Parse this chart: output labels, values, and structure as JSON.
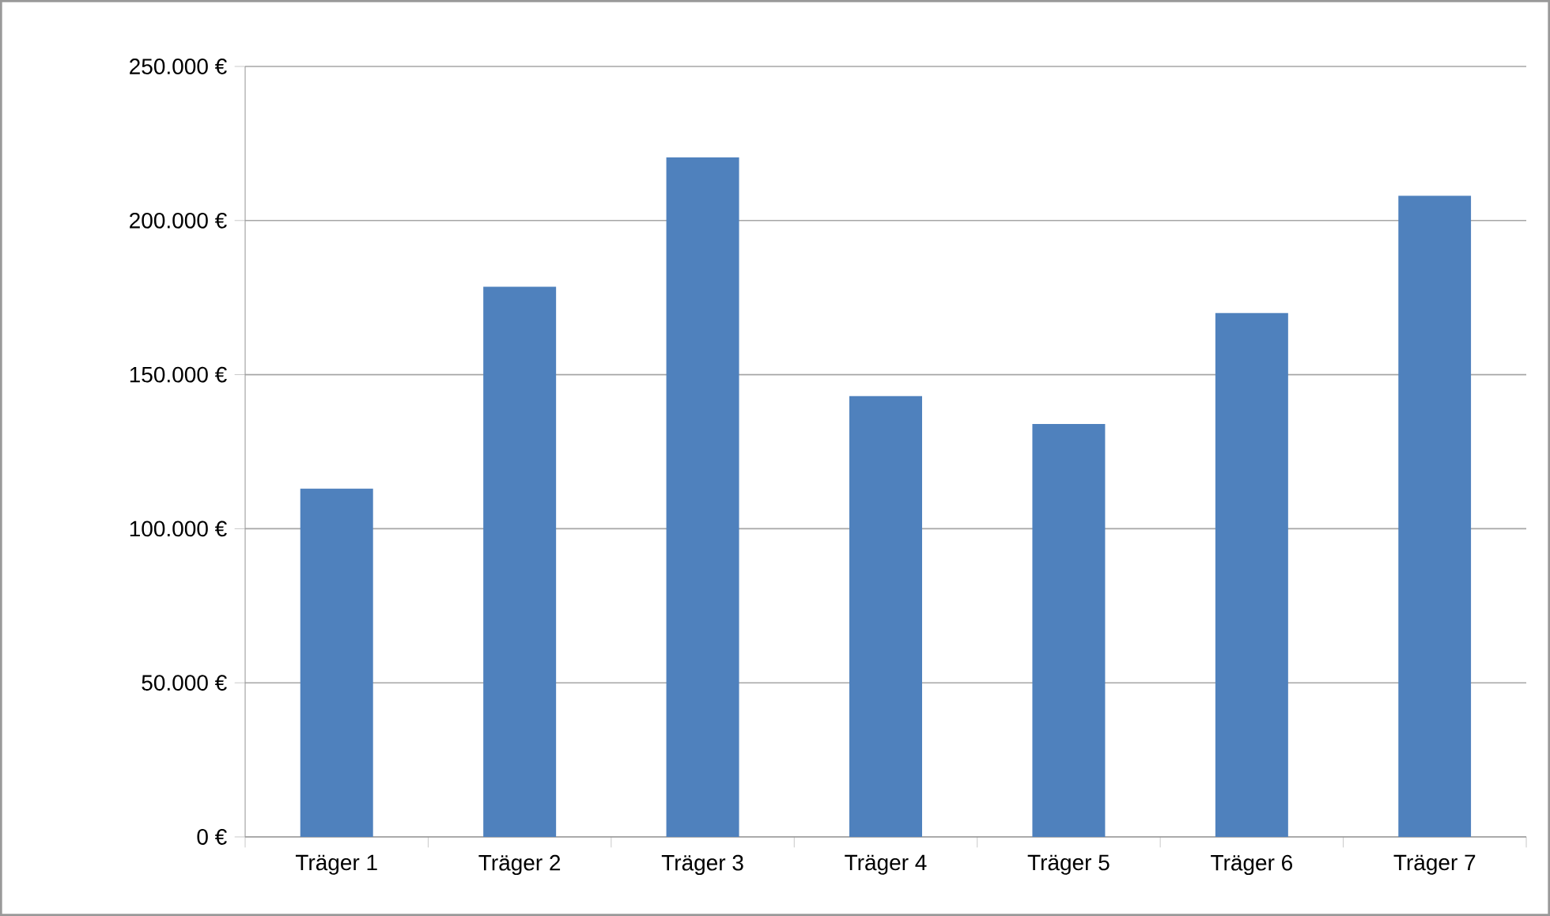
{
  "chart_data": {
    "type": "bar",
    "categories": [
      "Träger 1",
      "Träger 2",
      "Träger 3",
      "Träger 4",
      "Träger 5",
      "Träger 6",
      "Träger 7"
    ],
    "values": [
      113000,
      178500,
      220500,
      143000,
      134000,
      170000,
      208000
    ],
    "color": "#4f81bd",
    "ylim": [
      0,
      250000
    ],
    "yticks": [
      {
        "value": 0,
        "label": "0 €"
      },
      {
        "value": 50000,
        "label": "50.000 €"
      },
      {
        "value": 100000,
        "label": "100.000 €"
      },
      {
        "value": 150000,
        "label": "150.000 €"
      },
      {
        "value": 200000,
        "label": "200.000 €"
      },
      {
        "value": 250000,
        "label": "250.000 €"
      }
    ],
    "grid": "y"
  }
}
